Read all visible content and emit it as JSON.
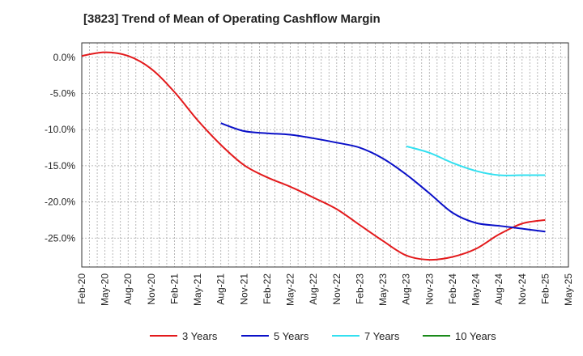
{
  "chart_data": {
    "type": "line",
    "title": "[3823]  Trend of Mean of Operating Cashflow Margin",
    "xlabel": "",
    "ylabel": "",
    "x_ticks": [
      "Feb-20",
      "May-20",
      "Aug-20",
      "Nov-20",
      "Feb-21",
      "May-21",
      "Aug-21",
      "Nov-21",
      "Feb-22",
      "May-22",
      "Aug-22",
      "Nov-22",
      "Feb-23",
      "May-23",
      "Aug-23",
      "Nov-23",
      "Feb-24",
      "May-24",
      "Aug-24",
      "Nov-24",
      "Feb-25",
      "May-25"
    ],
    "y_ticks": [
      0,
      -5,
      -10,
      -15,
      -20,
      -25
    ],
    "y_tick_labels": [
      "0.0%",
      "-5.0%",
      "-10.0%",
      "-15.0%",
      "-20.0%",
      "-25.0%"
    ],
    "ylim": [
      -29,
      2
    ],
    "grid": true,
    "legend_position": "bottom",
    "series": [
      {
        "name": "3 Years",
        "color": "#e31a1c",
        "points": [
          [
            0,
            0.2
          ],
          [
            1,
            0.7
          ],
          [
            2,
            0.2
          ],
          [
            3,
            -1.6
          ],
          [
            4,
            -4.8
          ],
          [
            5,
            -8.7
          ],
          [
            6,
            -12.1
          ],
          [
            7,
            -14.9
          ],
          [
            8,
            -16.6
          ],
          [
            9,
            -17.9
          ],
          [
            10,
            -19.4
          ],
          [
            11,
            -21.0
          ],
          [
            12,
            -23.2
          ],
          [
            13,
            -25.4
          ],
          [
            14,
            -27.4
          ],
          [
            15,
            -28.0
          ],
          [
            16,
            -27.6
          ],
          [
            17,
            -26.5
          ],
          [
            18,
            -24.5
          ],
          [
            19,
            -23.0
          ],
          [
            20,
            -22.5
          ]
        ]
      },
      {
        "name": "5 Years",
        "color": "#0a10c8",
        "points": [
          [
            6,
            -9.1
          ],
          [
            7,
            -10.2
          ],
          [
            8,
            -10.5
          ],
          [
            9,
            -10.7
          ],
          [
            10,
            -11.2
          ],
          [
            11,
            -11.8
          ],
          [
            12,
            -12.5
          ],
          [
            13,
            -14.0
          ],
          [
            14,
            -16.2
          ],
          [
            15,
            -18.8
          ],
          [
            16,
            -21.5
          ],
          [
            17,
            -22.9
          ],
          [
            18,
            -23.3
          ],
          [
            19,
            -23.7
          ],
          [
            20,
            -24.1
          ]
        ]
      },
      {
        "name": "7 Years",
        "color": "#33e0f0",
        "points": [
          [
            14,
            -12.3
          ],
          [
            15,
            -13.2
          ],
          [
            16,
            -14.6
          ],
          [
            17,
            -15.7
          ],
          [
            18,
            -16.3
          ],
          [
            19,
            -16.3
          ],
          [
            20,
            -16.3
          ]
        ]
      },
      {
        "name": "10 Years",
        "color": "#1a8a1a",
        "points": []
      }
    ]
  }
}
